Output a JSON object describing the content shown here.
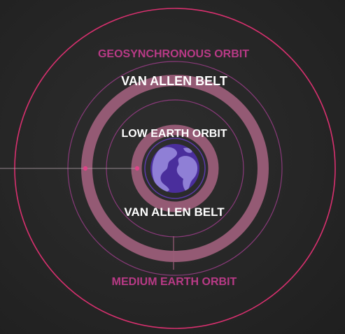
{
  "labels": {
    "geosynchronous": "GEOSYNCHRONOUS ORBIT",
    "van_allen_outer": "VAN ALLEN BELT",
    "low_earth": "LOW EARTH ORBIT",
    "van_allen_inner": "VAN ALLEN BELT",
    "medium_earth": "MEDIUM EARTH ORBIT"
  },
  "icons": {
    "planet": "earth-icon"
  },
  "colors": {
    "background": "#262626",
    "geo_ring": "#d9306f",
    "belt": "#9a5d78",
    "orbit_line": "#8a3a7a",
    "leo_ring": "#5b3aa8",
    "earth_ocean": "#4a2e9c",
    "earth_land": "#8f7fd6",
    "geo_label": "#b83a86",
    "white_label": "#ffffff",
    "meo_label": "#b83a86",
    "dot": "#e04488"
  }
}
